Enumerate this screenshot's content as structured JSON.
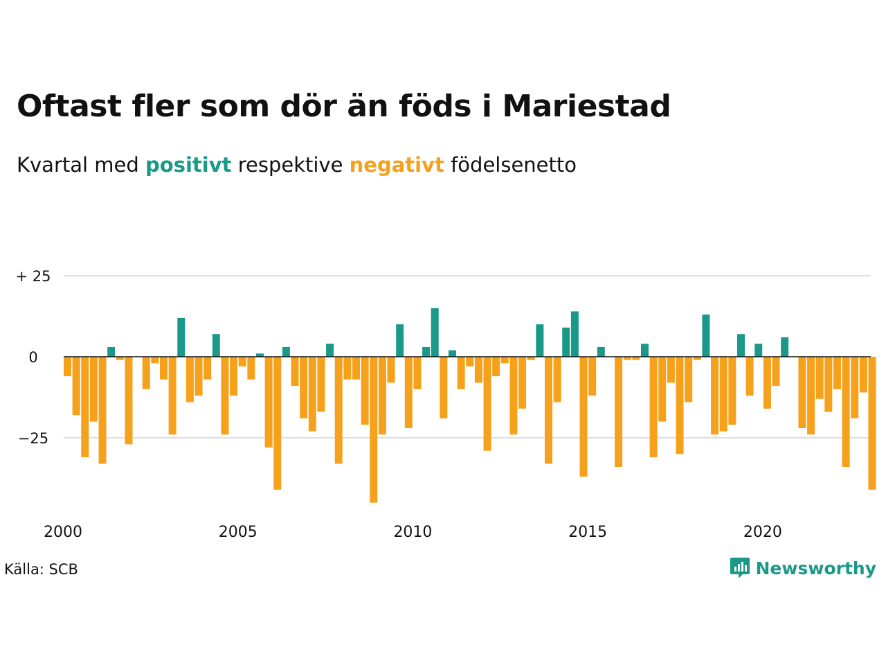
{
  "header": {
    "title": "Oftast fler som dör än föds i Mariestad",
    "subtitle_pre": "Kvartal med ",
    "subtitle_pos": "positivt",
    "subtitle_mid": " respektive ",
    "subtitle_neg": "negativt",
    "subtitle_post": " födelsenetto"
  },
  "footer": {
    "source": "Källa: SCB",
    "brand": "Newsworthy",
    "brand_icon": "chart-bubble-icon"
  },
  "colors": {
    "positive": "#1a9989",
    "negative": "#f5a11c",
    "grid": "#dddddd",
    "baseline": "#111111"
  },
  "chart_data": {
    "type": "bar",
    "title": "Oftast fler som dör än föds i Mariestad",
    "xlabel": "",
    "ylabel": "",
    "ylim": [
      -45,
      25
    ],
    "y_ticks": [
      25,
      0,
      -25
    ],
    "y_tick_labels": [
      "+ 25",
      "0",
      "−25"
    ],
    "x_ticks": [
      2000,
      2005,
      2010,
      2015,
      2020
    ],
    "x_tick_labels": [
      "2000",
      "2005",
      "2010",
      "2015",
      "2020"
    ],
    "x_start": 2000,
    "grid": true,
    "legend": "none",
    "values": [
      -6,
      -18,
      -31,
      -20,
      -33,
      3,
      -1,
      -27,
      0,
      -10,
      -2,
      -7,
      -24,
      12,
      -14,
      -12,
      -7,
      7,
      -24,
      -12,
      -3,
      -7,
      1,
      -28,
      -41,
      3,
      -9,
      -19,
      -23,
      -17,
      4,
      -33,
      -7,
      -7,
      -21,
      -45,
      -24,
      -8,
      10,
      -22,
      -10,
      3,
      15,
      -19,
      2,
      -10,
      -3,
      -8,
      -29,
      -6,
      -2,
      -24,
      -16,
      -1,
      10,
      -33,
      -14,
      9,
      14,
      -37,
      -12,
      3,
      0,
      -34,
      -1,
      -1,
      4,
      -31,
      -20,
      -8,
      -30,
      -14,
      -1,
      13,
      -24,
      -23,
      -21,
      7,
      -12,
      4,
      -16,
      -9,
      6,
      0,
      -22,
      -24,
      -13,
      -17,
      -10,
      -34,
      -19,
      -11,
      -41
    ]
  }
}
